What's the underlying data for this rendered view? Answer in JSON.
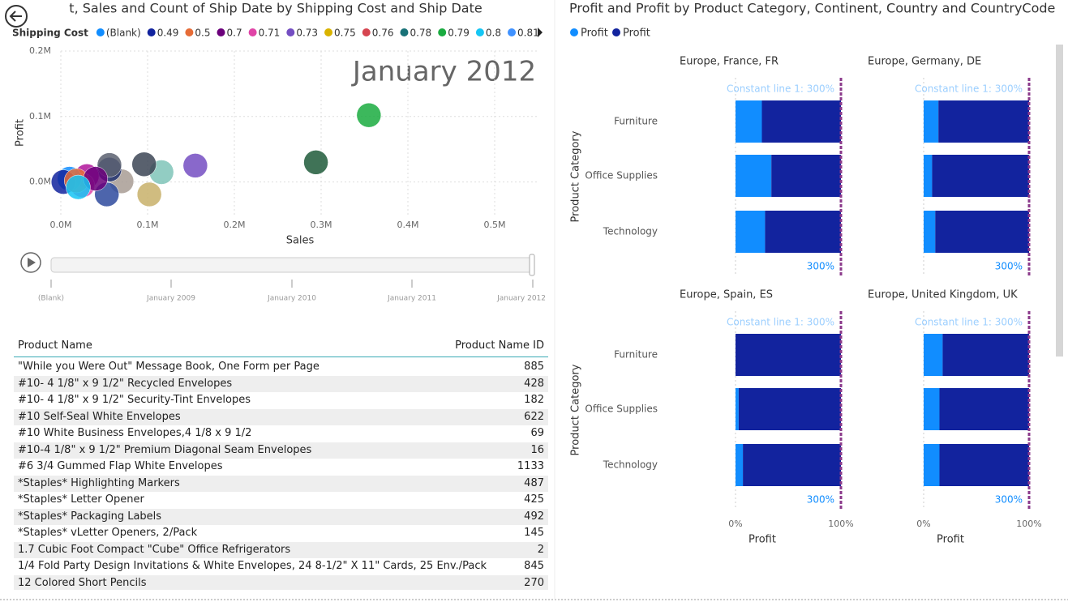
{
  "scatter": {
    "type": "scatter",
    "title": "t, Sales and Count of Ship Date by Shipping Cost and Ship Date",
    "legend_title": "Shipping Cost",
    "legend": [
      {
        "name": "(Blank)",
        "color": "#118dff"
      },
      {
        "name": "0.49",
        "color": "#12239e"
      },
      {
        "name": "0.5",
        "color": "#e66c37"
      },
      {
        "name": "0.7",
        "color": "#6b007b"
      },
      {
        "name": "0.71",
        "color": "#e044a7"
      },
      {
        "name": "0.73",
        "color": "#744ec2"
      },
      {
        "name": "0.75",
        "color": "#d9b300"
      },
      {
        "name": "0.76",
        "color": "#d64550"
      },
      {
        "name": "0.78",
        "color": "#197278"
      },
      {
        "name": "0.79",
        "color": "#1aab40"
      },
      {
        "name": "0.8",
        "color": "#15c6f4"
      },
      {
        "name": "0.81",
        "color": "#4092ff"
      }
    ],
    "period": "January 2012",
    "x_label": "Sales",
    "y_label": "Profit",
    "xlim": [
      0,
      550000
    ],
    "ylim": [
      -50000,
      200000
    ],
    "xticks": [
      {
        "value": 0,
        "label": "0.0M"
      },
      {
        "value": 100000,
        "label": "0.1M"
      },
      {
        "value": 200000,
        "label": "0.2M"
      },
      {
        "value": 300000,
        "label": "0.3M"
      },
      {
        "value": 400000,
        "label": "0.4M"
      },
      {
        "value": 500000,
        "label": "0.5M"
      }
    ],
    "yticks": [
      {
        "value": 0,
        "label": "0.0M"
      },
      {
        "value": 100000,
        "label": "0.1M"
      },
      {
        "value": 200000,
        "label": "0.2M"
      }
    ],
    "grid": true,
    "x": [
      355000,
      294000,
      155000,
      116000,
      96000,
      102000,
      70000,
      56000,
      53000,
      56000,
      30000,
      25000,
      10000,
      3000,
      18000,
      40000,
      20000
    ],
    "y": [
      102000,
      30000,
      25000,
      15000,
      27000,
      -19000,
      1000,
      19000,
      -19000,
      26000,
      9000,
      -5000,
      5000,
      0,
      2000,
      5000,
      -8000
    ],
    "colors": [
      "#1aab40",
      "#1e5a3a",
      "#744ec2",
      "#7fc4b8",
      "#3c4555",
      "#c8b06a",
      "#a89c94",
      "#1f2f6e",
      "#2e4a9e",
      "#5a6070",
      "#b0149a",
      "#e044a7",
      "#118dff",
      "#12239e",
      "#e66c37",
      "#6b007b",
      "#15c6f4"
    ]
  },
  "play_axis": {
    "labels": [
      "(Blank)",
      "January 2009",
      "January 2010",
      "January 2011",
      "January 2012"
    ]
  },
  "table": {
    "columns": [
      "Product Name",
      "Product Name ID"
    ],
    "rows": [
      [
        "\"While you Were Out\" Message Book, One Form per Page",
        "885"
      ],
      [
        "#10- 4 1/8\" x 9 1/2\" Recycled Envelopes",
        "428"
      ],
      [
        "#10- 4 1/8\" x 9 1/2\" Security-Tint Envelopes",
        "182"
      ],
      [
        "#10 Self-Seal White Envelopes",
        "622"
      ],
      [
        "#10 White Business Envelopes,4 1/8 x 9 1/2",
        "69"
      ],
      [
        "#10-4 1/8\" x 9 1/2\" Premium Diagonal Seam Envelopes",
        "16"
      ],
      [
        "#6 3/4 Gummed Flap White Envelopes",
        "1133"
      ],
      [
        "*Staples* Highlighting Markers",
        "487"
      ],
      [
        "*Staples* Letter Opener",
        "425"
      ],
      [
        "*Staples* Packaging Labels",
        "492"
      ],
      [
        "*Staples* vLetter Openers, 2/Pack",
        "145"
      ],
      [
        "1.7 Cubic Foot Compact \"Cube\" Office Refrigerators",
        "2"
      ],
      [
        "1/4 Fold Party Design Invitations & White Envelopes, 24 8-1/2\" X 11\" Cards, 25 Env./Pack",
        "845"
      ],
      [
        "12 Colored Short Pencils",
        "270"
      ]
    ]
  },
  "bar_chart": {
    "type": "bar",
    "title": "Profit and Profit by Product Category, Continent, Country and CountryCode",
    "series": [
      {
        "name": "Profit",
        "color": "#118dff"
      },
      {
        "name": "Profit",
        "color": "#12239e"
      }
    ],
    "y_label": "Product Category",
    "x_label": "Profit",
    "xlim": [
      0,
      100
    ],
    "xticks": [
      {
        "value": 0,
        "label": "0%"
      },
      {
        "value": 100,
        "label": "100%"
      }
    ],
    "constant_line": {
      "label": "Constant line 1: 300%",
      "value_label": "300%"
    },
    "categories": [
      "Furniture",
      "Office Supplies",
      "Technology"
    ],
    "panels": [
      {
        "title": "Europe, France, FR",
        "values": [
          [
            25,
            34,
            28
          ],
          [
            75,
            66,
            72
          ]
        ]
      },
      {
        "title": "Europe, Germany, DE",
        "values": [
          [
            14,
            8,
            11
          ],
          [
            86,
            92,
            89
          ]
        ]
      },
      {
        "title": "Europe, Spain, ES",
        "values": [
          [
            0,
            3,
            7
          ],
          [
            100,
            97,
            93
          ]
        ]
      },
      {
        "title": "Europe, United Kingdom, UK",
        "values": [
          [
            18,
            15,
            15
          ],
          [
            82,
            85,
            85
          ]
        ]
      }
    ]
  }
}
